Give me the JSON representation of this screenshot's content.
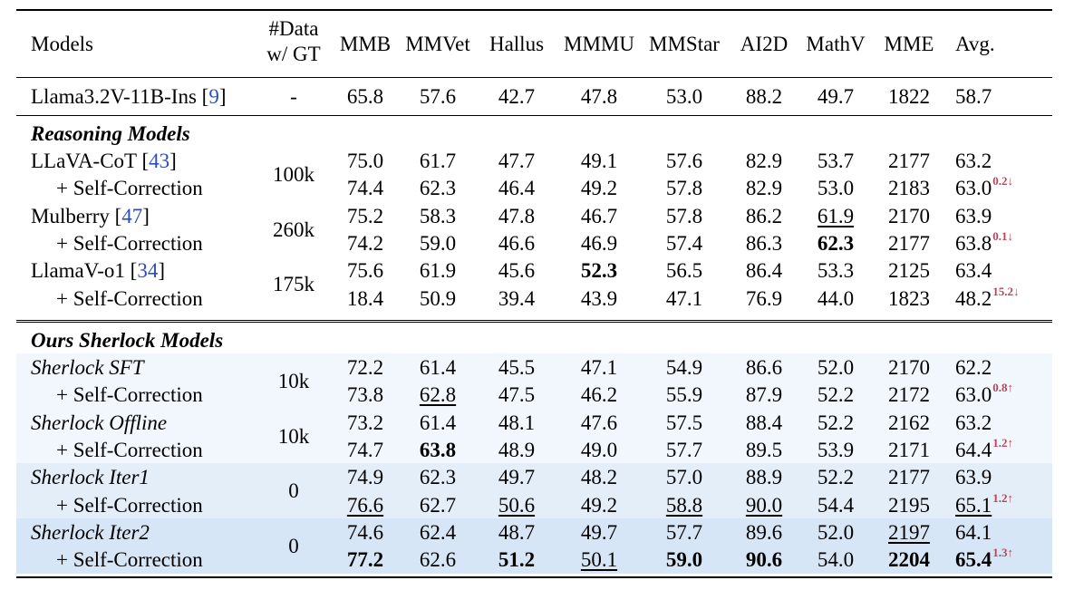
{
  "columns": [
    "Models",
    "#Data w/ GT",
    "MMB",
    "MMVet",
    "Hallus",
    "MMMU",
    "MMStar",
    "AI2D",
    "MathV",
    "MME",
    "Avg."
  ],
  "header": {
    "models": "Models",
    "data_line1": "#Data",
    "data_line2": "w/ GT"
  },
  "baseline": {
    "name": "Llama3.2V-11B-Ins [",
    "ref": "9",
    "name_end": "]",
    "data": "-",
    "values": [
      "65.8",
      "57.6",
      "42.7",
      "47.8",
      "53.0",
      "88.2",
      "49.7",
      "1822",
      "58.7"
    ]
  },
  "sections": [
    {
      "title": "Reasoning Models",
      "rows": [
        {
          "name": "LLaVA-CoT [",
          "ref": "43",
          "name_end": "]",
          "data": "100k",
          "values": [
            "75.0",
            "61.7",
            "47.7",
            "49.1",
            "57.6",
            "82.9",
            "53.7",
            "2177",
            "63.2"
          ],
          "delta": ""
        },
        {
          "name": "+ Self-Correction",
          "ref": "",
          "name_end": "",
          "values": [
            "74.4",
            "62.3",
            "46.4",
            "49.2",
            "57.8",
            "82.9",
            "53.0",
            "2183",
            "63.0"
          ],
          "delta": "0.2↓"
        },
        {
          "name": "Mulberry [",
          "ref": "47",
          "name_end": "]",
          "data": "260k",
          "values": [
            "75.2",
            "58.3",
            "47.8",
            "46.7",
            "57.8",
            "86.2",
            "61.9",
            "2170",
            "63.9"
          ],
          "delta": ""
        },
        {
          "name": "+ Self-Correction",
          "ref": "",
          "name_end": "",
          "values": [
            "74.2",
            "59.0",
            "46.6",
            "46.9",
            "57.4",
            "86.3",
            "62.3",
            "2177",
            "63.8"
          ],
          "delta": "0.1↓"
        },
        {
          "name": "LlamaV-o1 [",
          "ref": "34",
          "name_end": "]",
          "data": "175k",
          "values": [
            "75.6",
            "61.9",
            "45.6",
            "52.3",
            "56.5",
            "86.4",
            "53.3",
            "2125",
            "63.4"
          ],
          "delta": ""
        },
        {
          "name": "+ Self-Correction",
          "ref": "",
          "name_end": "",
          "values": [
            "18.4",
            "50.9",
            "39.4",
            "43.9",
            "47.1",
            "76.9",
            "44.0",
            "1823",
            "48.2"
          ],
          "delta": "15.2↓"
        }
      ]
    },
    {
      "title": "Ours Sherlock Models",
      "rows": [
        {
          "name": "Sherlock SFT",
          "italic": true,
          "data": "10k",
          "values": [
            "72.2",
            "61.4",
            "45.5",
            "47.1",
            "54.9",
            "86.6",
            "52.0",
            "2170",
            "62.2"
          ],
          "delta": ""
        },
        {
          "name": "+ Self-Correction",
          "values": [
            "73.8",
            "62.8",
            "47.5",
            "46.2",
            "55.9",
            "87.9",
            "52.2",
            "2172",
            "63.0"
          ],
          "delta": "0.8↑"
        },
        {
          "name": "Sherlock Offline",
          "italic": true,
          "data": "10k",
          "values": [
            "73.2",
            "61.4",
            "48.1",
            "47.6",
            "57.5",
            "88.4",
            "52.2",
            "2162",
            "63.2"
          ],
          "delta": ""
        },
        {
          "name": "+ Self-Correction",
          "values": [
            "74.7",
            "63.8",
            "48.9",
            "49.0",
            "57.7",
            "89.5",
            "53.9",
            "2171",
            "64.4"
          ],
          "delta": "1.2↑"
        },
        {
          "name": "Sherlock Iter1",
          "italic": true,
          "data": "0",
          "values": [
            "74.9",
            "62.3",
            "49.7",
            "48.2",
            "57.0",
            "88.9",
            "52.2",
            "2177",
            "63.9"
          ],
          "delta": ""
        },
        {
          "name": "+ Self-Correction",
          "values": [
            "76.6",
            "62.7",
            "50.6",
            "49.2",
            "58.8",
            "90.0",
            "54.4",
            "2195",
            "65.1"
          ],
          "delta": "1.2↑"
        },
        {
          "name": "Sherlock Iter2",
          "italic": true,
          "data": "0",
          "values": [
            "74.6",
            "62.4",
            "48.7",
            "49.7",
            "57.7",
            "89.6",
            "52.0",
            "2197",
            "64.1"
          ],
          "delta": ""
        },
        {
          "name": "+ Self-Correction",
          "values": [
            "77.2",
            "62.6",
            "51.2",
            "50.1",
            "59.0",
            "90.6",
            "54.0",
            "2204",
            "65.4"
          ],
          "delta": "1.3↑"
        }
      ]
    }
  ],
  "styles": {
    "bold": [
      "r0-2-5-3",
      "r1-7-3-0",
      "r1-7-3-2",
      "r1-7-3-4",
      "r1-7-3-5",
      "r1-7-3-7",
      "r1-7-3-8",
      "r1-3-3-1",
      "r0-3-6",
      "r0-1-6"
    ],
    "colors": {
      "reference": "#2b4fbf",
      "delta": "#b4475a",
      "band_light": "#f2f7fd",
      "band_mid": "#e4eef9",
      "band_dark": "#d7e6f6"
    }
  }
}
